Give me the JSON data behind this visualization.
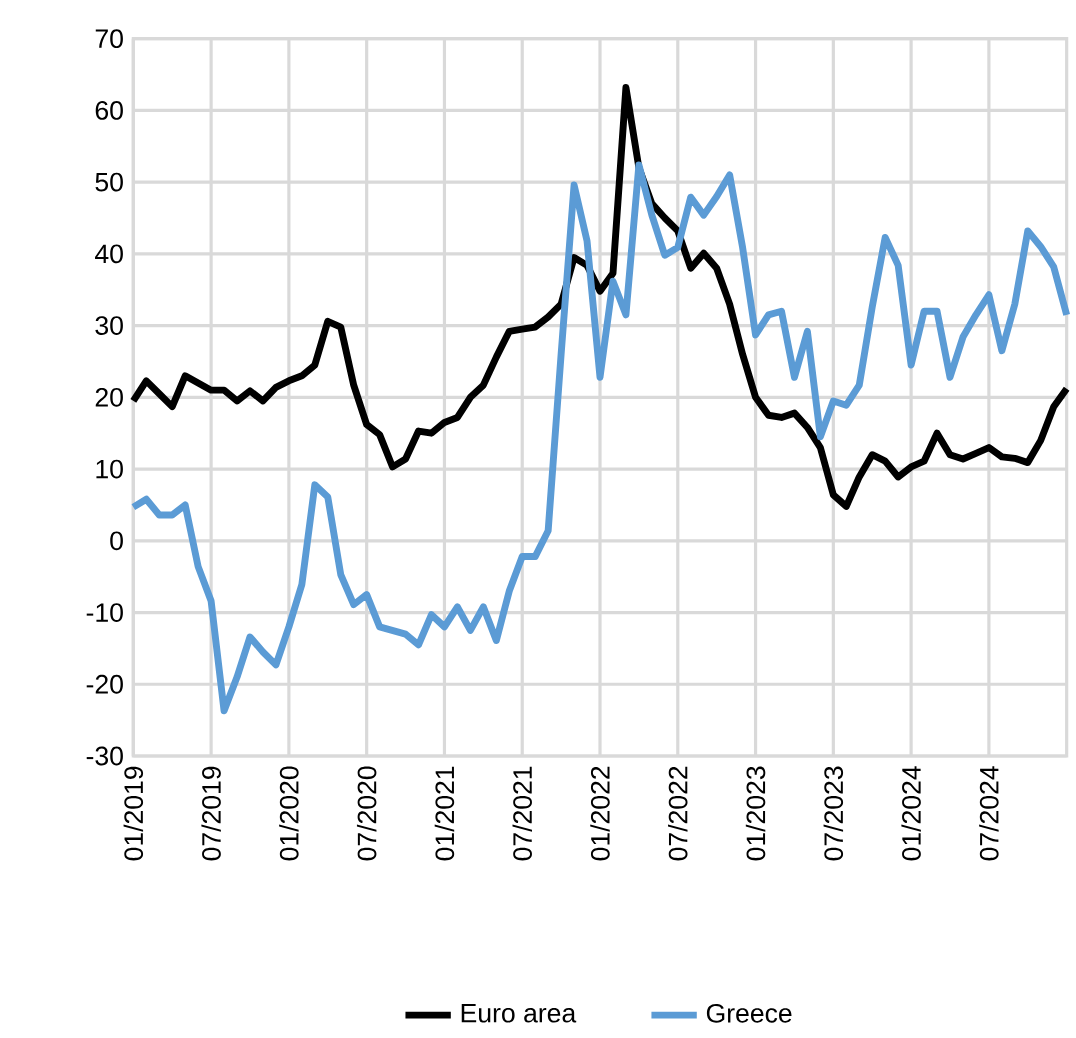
{
  "chart_data": {
    "type": "line",
    "x": [
      "2019-01",
      "2019-02",
      "2019-03",
      "2019-04",
      "2019-05",
      "2019-06",
      "2019-07",
      "2019-08",
      "2019-09",
      "2019-10",
      "2019-11",
      "2019-12",
      "2020-01",
      "2020-02",
      "2020-03",
      "2020-04",
      "2020-05",
      "2020-06",
      "2020-07",
      "2020-08",
      "2020-09",
      "2020-10",
      "2020-11",
      "2020-12",
      "2021-01",
      "2021-02",
      "2021-03",
      "2021-04",
      "2021-05",
      "2021-06",
      "2021-07",
      "2021-08",
      "2021-09",
      "2021-10",
      "2021-11",
      "2021-12",
      "2022-01",
      "2022-02",
      "2022-03",
      "2022-04",
      "2022-05",
      "2022-06",
      "2022-07",
      "2022-08",
      "2022-09",
      "2022-10",
      "2022-11",
      "2022-12",
      "2023-01",
      "2023-02",
      "2023-03",
      "2023-04",
      "2023-05",
      "2023-06",
      "2023-07",
      "2023-08",
      "2023-09",
      "2023-10",
      "2023-11",
      "2023-12",
      "2024-01",
      "2024-02",
      "2024-03",
      "2024-04",
      "2024-05",
      "2024-06",
      "2024-07",
      "2024-08",
      "2024-09",
      "2024-10",
      "2024-11",
      "2024-12",
      "2025-01"
    ],
    "series": [
      {
        "name": "Euro area",
        "color": "#000000",
        "values": [
          19.5,
          22.3,
          20.5,
          18.7,
          23,
          22,
          21,
          21,
          19.5,
          20.9,
          19.5,
          21.4,
          22.3,
          23,
          24.5,
          30.6,
          29.8,
          21.7,
          16.2,
          14.8,
          10.3,
          11.4,
          15.3,
          15,
          16.5,
          17.2,
          20,
          21.7,
          25.6,
          29.2,
          29.5,
          29.8,
          31.2,
          33,
          39.5,
          38.4,
          34.8,
          37.3,
          63.2,
          52,
          47,
          45,
          43.2,
          38,
          40.1,
          38,
          33,
          26,
          20,
          17.5,
          17.2,
          17.8,
          15.8,
          13,
          6.4,
          4.8,
          8.9,
          12,
          11.1,
          8.9,
          10.3,
          11.1,
          15,
          12,
          11.4,
          12.2,
          13,
          11.7,
          11.5,
          10.9,
          14,
          18.7,
          21.2
        ]
      },
      {
        "name": "Greece",
        "color": "#5b9bd5",
        "values": [
          4.7,
          5.8,
          3.6,
          3.6,
          5,
          -3.6,
          -8.4,
          -23.7,
          -19,
          -13.4,
          -15.5,
          -17.3,
          -12,
          -6.1,
          7.8,
          6.1,
          -4.7,
          -8.9,
          -7.5,
          -12,
          -12.5,
          -13,
          -14.5,
          -10.3,
          -12,
          -9.2,
          -12.5,
          -9.2,
          -13.9,
          -7,
          -2.2,
          -2.2,
          1.4,
          26,
          49.6,
          41.8,
          22.8,
          36.2,
          31.5,
          52.4,
          45.4,
          39.8,
          40.9,
          47.9,
          45.4,
          48,
          51,
          40.9,
          28.7,
          31.5,
          32,
          22.8,
          29.2,
          14.5,
          19.5,
          18.9,
          21.7,
          32.6,
          42.3,
          38.4,
          24.5,
          32,
          32,
          22.8,
          28.4,
          31.5,
          34.3,
          26.5,
          33,
          43.2,
          41,
          38.2,
          31.5
        ]
      }
    ],
    "xlim": [
      "2019-01",
      "2025-01"
    ],
    "xticks": [
      {
        "value": "2019-01",
        "label": "01/2019"
      },
      {
        "value": "2019-07",
        "label": "07/2019"
      },
      {
        "value": "2020-01",
        "label": "01/2020"
      },
      {
        "value": "2020-07",
        "label": "07/2020"
      },
      {
        "value": "2021-01",
        "label": "01/2021"
      },
      {
        "value": "2021-07",
        "label": "07/2021"
      },
      {
        "value": "2022-01",
        "label": "01/2022"
      },
      {
        "value": "2022-07",
        "label": "07/2022"
      },
      {
        "value": "2023-01",
        "label": "01/2023"
      },
      {
        "value": "2023-07",
        "label": "07/2023"
      },
      {
        "value": "2024-01",
        "label": "01/2024"
      },
      {
        "value": "2024-07",
        "label": "07/2024"
      }
    ],
    "ylim": [
      -30,
      70
    ],
    "yticks": [
      -30,
      -20,
      -10,
      0,
      10,
      20,
      30,
      40,
      50,
      60,
      70
    ],
    "grid": true,
    "legend": "bottom",
    "marker": "none",
    "line_style": "solid"
  }
}
